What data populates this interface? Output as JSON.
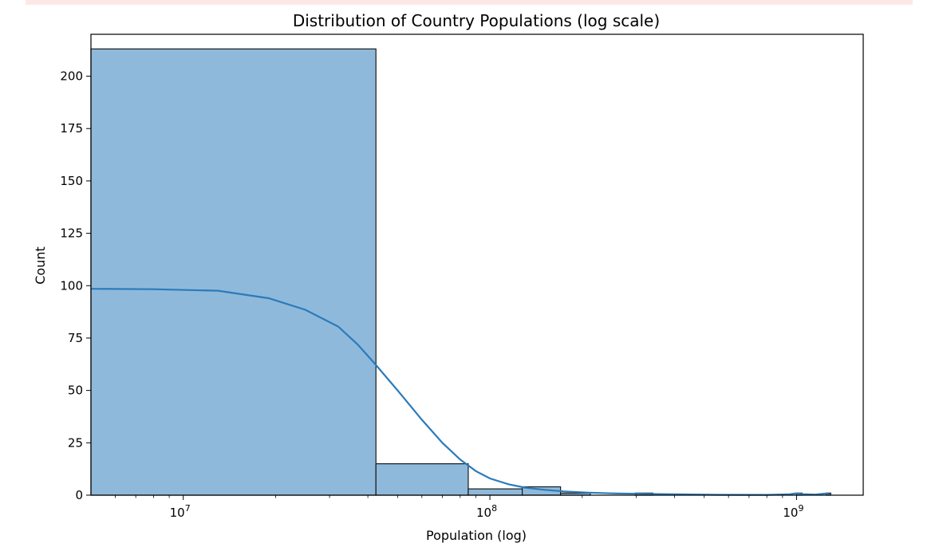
{
  "colors": {
    "bar_fill": "#8fb9db",
    "bar_stroke": "#1a1a1a",
    "kde_line": "#2b7bba",
    "axis": "#000000",
    "warning_strip": "#fde8e8"
  },
  "chart_data": {
    "type": "bar",
    "title": "Distribution of Country Populations (log scale)",
    "xlabel": "Population (log)",
    "ylabel": "Count",
    "xscale": "log",
    "xlim": [
      5000000,
      1650000000
    ],
    "ylim": [
      0,
      220
    ],
    "grid": false,
    "legend": "none",
    "yticks": [
      {
        "value": 0,
        "label": "0"
      },
      {
        "value": 25,
        "label": "25"
      },
      {
        "value": 50,
        "label": "50"
      },
      {
        "value": 75,
        "label": "75"
      },
      {
        "value": 100,
        "label": "100"
      },
      {
        "value": 125,
        "label": "125"
      },
      {
        "value": 150,
        "label": "150"
      },
      {
        "value": 175,
        "label": "175"
      },
      {
        "value": 200,
        "label": "200"
      }
    ],
    "xticks": [
      {
        "value": 10000000,
        "base": "10",
        "exp": "7"
      },
      {
        "value": 100000000,
        "base": "10",
        "exp": "8"
      },
      {
        "value": 1000000000,
        "base": "10",
        "exp": "9"
      }
    ],
    "bins": [
      {
        "x0": 5000000,
        "x1": 42500000,
        "count": 213
      },
      {
        "x0": 42500000,
        "x1": 85000000,
        "count": 15
      },
      {
        "x0": 85000000,
        "x1": 127500000,
        "count": 3
      },
      {
        "x0": 127500000,
        "x1": 170000000,
        "count": 4
      },
      {
        "x0": 170000000,
        "x1": 212500000,
        "count": 1
      },
      {
        "x0": 212500000,
        "x1": 255000000,
        "count": 0
      },
      {
        "x0": 255000000,
        "x1": 297500000,
        "count": 0
      },
      {
        "x0": 297500000,
        "x1": 340000000,
        "count": 1
      },
      {
        "x0": 340000000,
        "x1": 1000000000,
        "count": 0
      },
      {
        "x0": 1000000000,
        "x1": 1042500000,
        "count": 1
      },
      {
        "x0": 1250000000,
        "x1": 1292500000,
        "count": 1
      }
    ],
    "kde_series": {
      "x": [
        5000000,
        8000000,
        13000000,
        19000000,
        25000000,
        32000000,
        37000000,
        42000000,
        50000000,
        60000000,
        70000000,
        80000000,
        90000000,
        100000000,
        115000000,
        130000000,
        150000000,
        175000000,
        210000000,
        260000000,
        300000000,
        400000000,
        550000000,
        800000000,
        950000000,
        1000000000,
        1050000000,
        1150000000,
        1250000000,
        1290000000
      ],
      "y": [
        98.5,
        98.3,
        97.6,
        94.0,
        88.5,
        80.5,
        72.0,
        63.0,
        50.0,
        36.0,
        25.0,
        17.0,
        11.5,
        8.0,
        5.2,
        3.6,
        2.6,
        1.8,
        1.2,
        0.8,
        0.7,
        0.4,
        0.2,
        0.15,
        0.4,
        0.9,
        0.5,
        0.3,
        0.8,
        0.3
      ]
    }
  }
}
